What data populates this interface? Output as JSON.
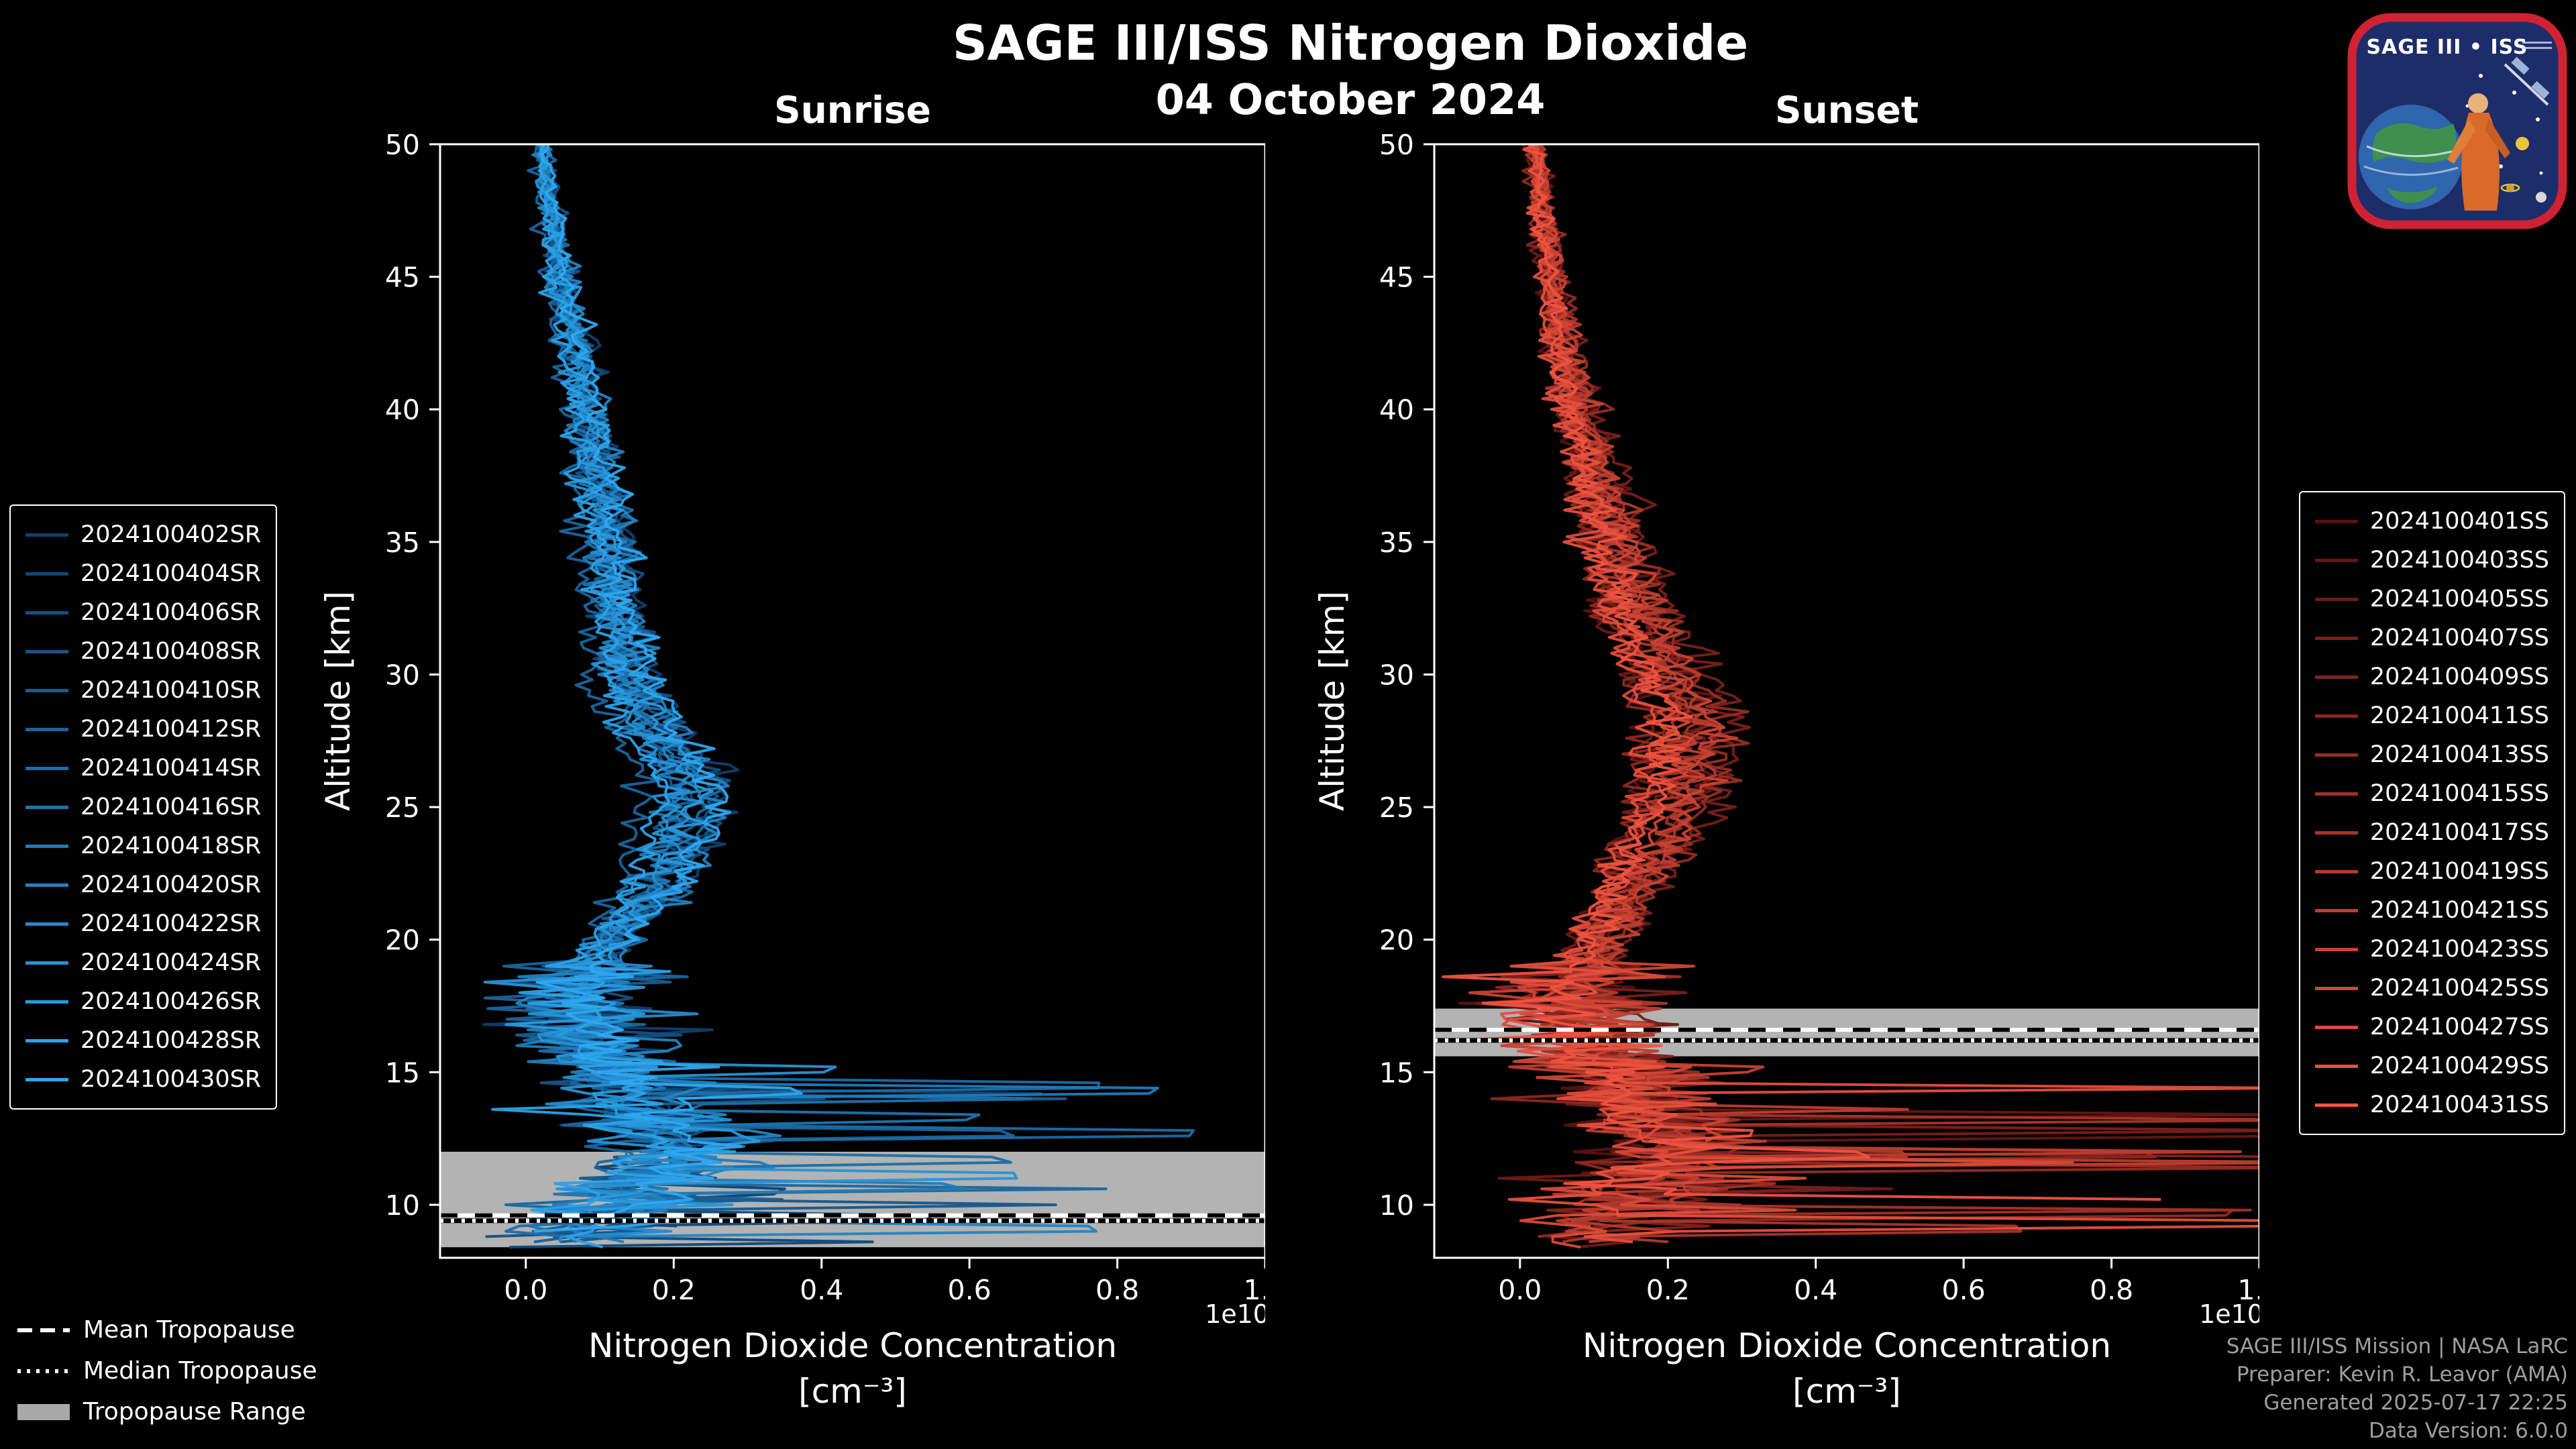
{
  "header": {
    "title": "SAGE III/ISS Nitrogen Dioxide",
    "date": "04 October 2024"
  },
  "logo": {
    "title": "SAGE III • ISS"
  },
  "chart_data": [
    {
      "panel": "sunrise",
      "type": "line",
      "title": "Sunrise",
      "xlabel": "Nitrogen Dioxide Concentration",
      "xlabel_units": "[cm⁻³]",
      "ylabel": "Altitude [km]",
      "x_scale_label": "1e10",
      "xlim_1e10": [
        -0.116,
        1.0
      ],
      "xticks_1e10": [
        0.0,
        0.2,
        0.4,
        0.6,
        0.8,
        1.0
      ],
      "ylim_km": [
        8,
        50
      ],
      "yticks_km": [
        10,
        15,
        20,
        25,
        30,
        35,
        40,
        45,
        50
      ],
      "series_names": [
        "2024100402SR",
        "2024100404SR",
        "2024100406SR",
        "2024100408SR",
        "2024100410SR",
        "2024100412SR",
        "2024100414SR",
        "2024100416SR",
        "2024100418SR",
        "2024100420SR",
        "2024100422SR",
        "2024100424SR",
        "2024100426SR",
        "2024100428SR",
        "2024100430SR"
      ],
      "color_dark": "#0d4070",
      "color_bright": "#2ea8f0",
      "tropopause_band_color": "#b3b3b3",
      "tropopause_line_color": "#ffffff",
      "mean_profile": {
        "altitude_km": [
          50,
          48,
          46,
          44,
          42,
          40,
          38,
          36,
          34,
          32,
          30,
          28,
          26,
          24,
          22,
          20,
          18,
          16,
          14,
          12,
          10,
          9
        ],
        "concentration_1e10": [
          0.02,
          0.03,
          0.04,
          0.05,
          0.07,
          0.08,
          0.09,
          0.1,
          0.11,
          0.12,
          0.13,
          0.16,
          0.21,
          0.2,
          0.17,
          0.11,
          0.06,
          0.08,
          0.14,
          0.2,
          0.12,
          0.06
        ]
      },
      "noise_1e10": {
        "upper": 0.008,
        "mid": 0.022,
        "lower": 0.08
      },
      "spikes": {
        "probability": 0.05,
        "min_1e10": 0.3,
        "max_1e10": 0.9
      },
      "tropopause_km": {
        "mean": 9.6,
        "median": 9.4,
        "range": [
          8.4,
          12.0
        ]
      }
    },
    {
      "panel": "sunset",
      "type": "line",
      "title": "Sunset",
      "xlabel": "Nitrogen Dioxide Concentration",
      "xlabel_units": "[cm⁻³]",
      "ylabel": "Altitude [km]",
      "x_scale_label": "1e10",
      "xlim_1e10": [
        -0.116,
        1.0
      ],
      "xticks_1e10": [
        0.0,
        0.2,
        0.4,
        0.6,
        0.8,
        1.0
      ],
      "ylim_km": [
        8,
        50
      ],
      "yticks_km": [
        10,
        15,
        20,
        25,
        30,
        35,
        40,
        45,
        50
      ],
      "series_names": [
        "2024100401SS",
        "2024100403SS",
        "2024100405SS",
        "2024100407SS",
        "2024100409SS",
        "2024100411SS",
        "2024100413SS",
        "2024100415SS",
        "2024100417SS",
        "2024100419SS",
        "2024100421SS",
        "2024100423SS",
        "2024100425SS",
        "2024100427SS",
        "2024100429SS",
        "2024100431SS"
      ],
      "color_dark": "#5a1210",
      "color_bright": "#ef5340",
      "tropopause_band_color": "#b3b3b3",
      "tropopause_line_color": "#ffffff",
      "mean_profile": {
        "altitude_km": [
          50,
          48,
          46,
          44,
          42,
          40,
          38,
          36,
          34,
          32,
          30,
          28,
          26,
          24,
          22,
          20,
          18,
          16,
          14,
          12,
          10,
          9
        ],
        "concentration_1e10": [
          0.02,
          0.03,
          0.04,
          0.05,
          0.06,
          0.08,
          0.1,
          0.12,
          0.14,
          0.16,
          0.2,
          0.23,
          0.22,
          0.19,
          0.15,
          0.11,
          0.08,
          0.1,
          0.16,
          0.22,
          0.15,
          0.08
        ]
      },
      "noise_1e10": {
        "upper": 0.009,
        "mid": 0.025,
        "lower": 0.09
      },
      "spikes": {
        "probability": 0.07,
        "min_1e10": 0.3,
        "max_1e10": 1.15
      },
      "tropopause_km": {
        "mean": 16.6,
        "median": 16.2,
        "range": [
          15.6,
          17.4
        ]
      }
    }
  ],
  "legend_tropopause": {
    "mean_label": "Mean Tropopause",
    "median_label": "Median Tropopause",
    "range_label": "Tropopause Range"
  },
  "footer": {
    "lines": [
      "SAGE III/ISS Mission | NASA LaRC",
      "Preparer: Kevin R. Leavor (AMA)",
      "Generated 2025-07-17 22:25",
      "Data Version: 6.0.0"
    ]
  }
}
